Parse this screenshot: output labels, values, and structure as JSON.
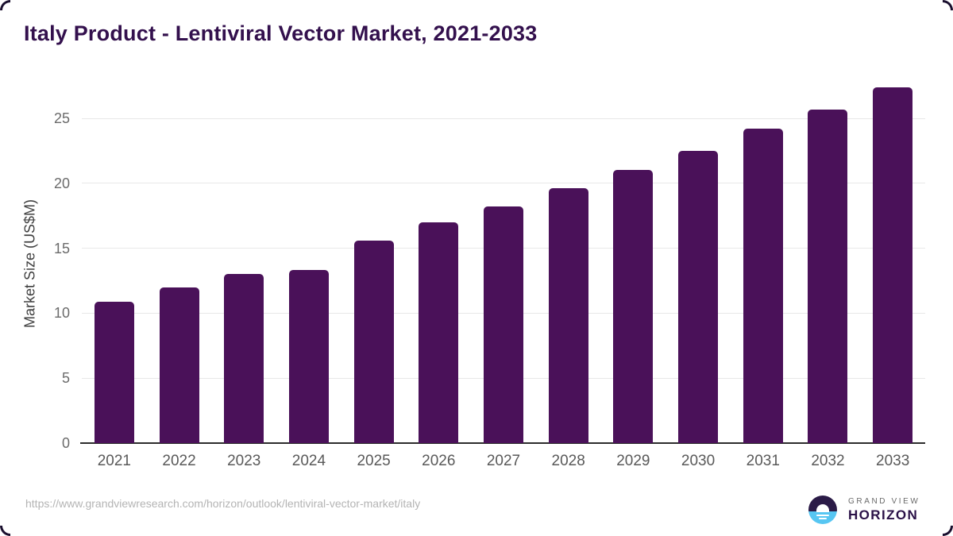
{
  "title": "Italy Product - Lentiviral Vector Market, 2021-2033",
  "colors": {
    "bar": "#4a1159",
    "title_text": "#33104d",
    "gridline": "#e8e8e8",
    "axis_line": "#2d2d2d",
    "tick_label": "#6b6b6b",
    "url_text": "#b4b4b4",
    "logo_dark": "#2b1b47",
    "logo_blue": "#57c6f2"
  },
  "chart_data": {
    "type": "bar",
    "title": "Italy Product - Lentiviral Vector Market, 2021-2033",
    "categories": [
      "2021",
      "2022",
      "2023",
      "2024",
      "2025",
      "2026",
      "2027",
      "2028",
      "2029",
      "2030",
      "2031",
      "2032",
      "2033"
    ],
    "values": [
      10.9,
      12.0,
      13.0,
      13.3,
      15.6,
      17.0,
      18.2,
      19.6,
      21.0,
      22.5,
      24.2,
      25.7,
      27.4
    ],
    "xlabel": "",
    "ylabel": "Market Size (US$M)",
    "yticks": [
      0,
      5,
      10,
      15,
      20,
      25
    ],
    "ylim": [
      0,
      28
    ],
    "grid": true,
    "legend": false,
    "bar_color": "#4a1159"
  },
  "footer": {
    "url": "https://www.grandviewresearch.com/horizon/outlook/lentiviral-vector-market/italy",
    "logo": {
      "line1": "GRAND VIEW",
      "line2": "HORIZON"
    }
  }
}
